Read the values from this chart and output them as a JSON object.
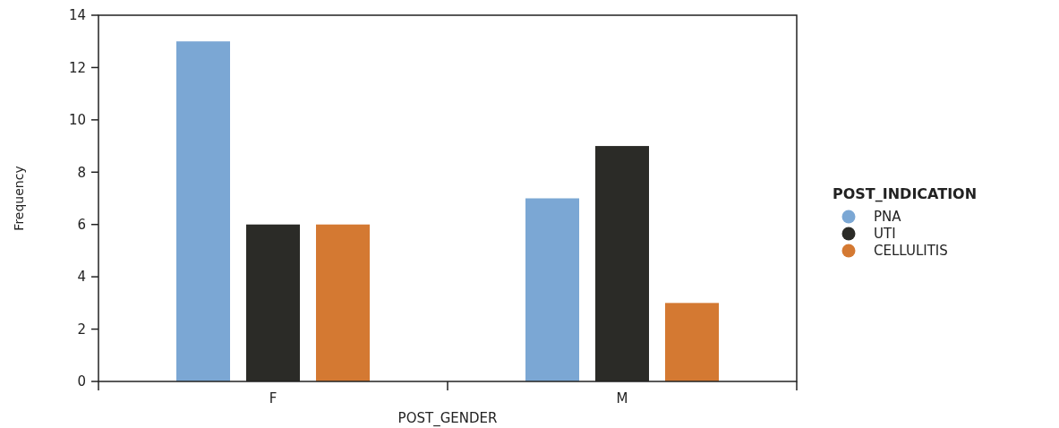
{
  "chart_data": {
    "type": "bar",
    "xlabel": "POST_GENDER",
    "ylabel": "Frequency",
    "legend_title": "POST_INDICATION",
    "categories": [
      "F",
      "M"
    ],
    "series": [
      {
        "name": "PNA",
        "color": "#7ba7d4",
        "values": [
          13,
          7
        ]
      },
      {
        "name": "UTI",
        "color": "#2b2b27",
        "values": [
          6,
          9
        ]
      },
      {
        "name": "CELLULITIS",
        "color": "#d47932",
        "values": [
          6,
          3
        ]
      }
    ],
    "ylim": [
      0,
      14
    ],
    "yticks": [
      0,
      2,
      4,
      6,
      8,
      10,
      12,
      14
    ],
    "grid": false,
    "legend": "right"
  }
}
